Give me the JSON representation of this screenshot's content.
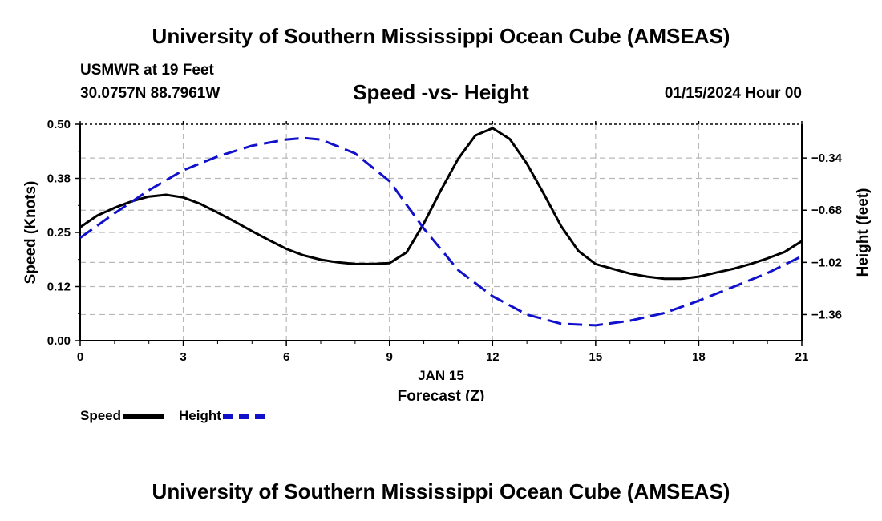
{
  "header": {
    "title_top": "University of Southern Mississippi Ocean Cube (AMSEAS)",
    "station": "USMWR at 19 Feet",
    "coords": "30.0757N  88.7961W",
    "plot_title": "Speed -vs- Height",
    "datetime": "01/15/2024 Hour 00",
    "title_bottom": "University of Southern Mississippi Ocean Cube (AMSEAS)"
  },
  "chart_data": {
    "type": "line",
    "title": "Speed -vs- Height",
    "xlabel_date": "JAN 15",
    "xlabel": "Forecast (Z)",
    "ylabel_left": "Speed (Knots)",
    "ylabel_right": "Height (feet)",
    "xlim": [
      0,
      21
    ],
    "x_ticks": [
      0,
      3,
      6,
      9,
      12,
      15,
      18,
      21
    ],
    "x_tick_labels": [
      "0",
      "3",
      "6",
      "9",
      "12",
      "15",
      "18",
      "21"
    ],
    "ylim_left": [
      0,
      0.5
    ],
    "y_left_ticks": [
      0.0,
      0.125,
      0.25,
      0.375,
      0.5
    ],
    "y_left_tick_labels": [
      "0.00",
      "0.12",
      "0.25",
      "0.38",
      "0.50"
    ],
    "ylim_right": [
      -1.53,
      -0.12
    ],
    "y_right_ticks": [
      -0.34,
      -0.68,
      -1.02,
      -1.36
    ],
    "y_right_tick_labels": [
      "−0.34",
      "−0.68",
      "−1.02",
      "−1.36"
    ],
    "grid": true,
    "legend_position": "bottom-left",
    "series": [
      {
        "name": "Speed",
        "axis": "left",
        "color": "#000000",
        "style": "solid",
        "x": [
          0,
          0.5,
          1,
          1.5,
          2,
          2.5,
          3,
          3.5,
          4,
          4.5,
          5,
          5.5,
          6,
          6.5,
          7,
          7.5,
          8,
          8.5,
          9,
          9.5,
          10,
          10.5,
          11,
          11.5,
          12,
          12.5,
          13,
          13.5,
          14,
          14.5,
          15,
          15.5,
          16,
          16.5,
          17,
          17.5,
          18,
          18.5,
          19,
          19.5,
          20,
          20.5,
          21
        ],
        "values": [
          0.262,
          0.289,
          0.307,
          0.322,
          0.333,
          0.337,
          0.331,
          0.316,
          0.296,
          0.275,
          0.253,
          0.232,
          0.212,
          0.197,
          0.187,
          0.181,
          0.177,
          0.177,
          0.179,
          0.204,
          0.271,
          0.348,
          0.42,
          0.474,
          0.491,
          0.466,
          0.409,
          0.338,
          0.264,
          0.207,
          0.177,
          0.166,
          0.155,
          0.148,
          0.143,
          0.143,
          0.148,
          0.157,
          0.166,
          0.177,
          0.19,
          0.205,
          0.23
        ]
      },
      {
        "name": "Height",
        "axis": "right",
        "color": "#1111cc",
        "style": "dashed",
        "x": [
          0,
          1,
          2,
          3,
          4,
          5,
          6,
          6.5,
          7,
          8,
          9,
          10,
          11,
          12,
          13,
          14,
          15,
          16,
          17,
          18,
          19,
          20,
          21
        ],
        "values": [
          -0.86,
          -0.7,
          -0.55,
          -0.42,
          -0.33,
          -0.26,
          -0.22,
          -0.21,
          -0.22,
          -0.31,
          -0.49,
          -0.8,
          -1.07,
          -1.24,
          -1.36,
          -1.42,
          -1.43,
          -1.4,
          -1.35,
          -1.27,
          -1.18,
          -1.09,
          -0.98
        ]
      }
    ]
  },
  "legend": {
    "speed_label": "Speed",
    "height_label": "Height"
  }
}
